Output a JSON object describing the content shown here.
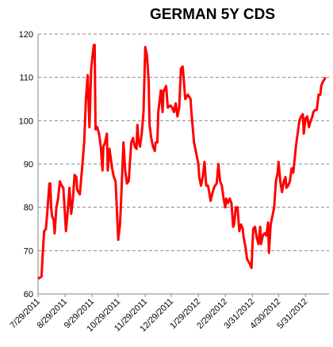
{
  "chart_data": {
    "type": "line",
    "title": "GERMAN 5Y CDS",
    "color": "#ff0000",
    "grid": true,
    "ylim": [
      60,
      120
    ],
    "yticks": [
      60,
      70,
      80,
      90,
      100,
      110,
      120
    ],
    "xlim": [
      "7/29/2011",
      "6/27/2012"
    ],
    "xticks": [
      "7/29/2011",
      "8/29/2011",
      "9/29/2011",
      "10/29/2011",
      "11/29/2011",
      "12/29/2011",
      "1/29/2012",
      "2/29/2012",
      "3/31/2012",
      "4/30/2012",
      "5/31/2012"
    ],
    "x": [
      "7/29/2011",
      "8/2/2011",
      "8/3/2011",
      "8/5/2011",
      "8/7/2011",
      "8/9/2011",
      "8/11/2011",
      "8/12/2011",
      "8/13/2011",
      "8/14/2011",
      "8/16/2011",
      "8/17/2011",
      "8/19/2011",
      "8/21/2011",
      "8/23/2011",
      "8/25/2011",
      "8/27/2011",
      "8/30/2011",
      "9/1/2011",
      "9/3/2011",
      "9/5/2011",
      "9/7/2011",
      "9/9/2011",
      "9/11/2011",
      "9/12/2011",
      "9/15/2011",
      "9/18/2011",
      "9/20/2011",
      "9/22/2011",
      "9/24/2011",
      "9/26/2011",
      "9/28/2011",
      "10/1/2011",
      "10/2/2011",
      "10/3/2011",
      "10/5/2011",
      "10/7/2011",
      "10/9/2011",
      "10/11/2011",
      "10/12/2011",
      "10/14/2011",
      "10/16/2011",
      "10/17/2011",
      "10/19/2011",
      "10/21/2011",
      "10/22/2011",
      "10/24/2011",
      "10/26/2011",
      "10/29/2011",
      "10/31/2011",
      "11/1/2011",
      "11/4/2011",
      "11/6/2011",
      "11/8/2011",
      "11/10/2011",
      "11/11/2011",
      "11/13/2011",
      "11/15/2011",
      "11/17/2011",
      "11/19/2011",
      "11/20/2011",
      "11/21/2011",
      "11/23/2011",
      "11/25/2011",
      "11/27/2011",
      "11/29/2011",
      "12/1/2011",
      "12/3/2011",
      "12/4/2011",
      "12/6/2011",
      "12/8/2011",
      "12/10/2011",
      "12/11/2011",
      "12/13/2011",
      "12/14/2011",
      "12/17/2011",
      "12/19/2011",
      "12/20/2011",
      "12/21/2011",
      "12/23/2011",
      "12/25/2011",
      "12/28/2011",
      "12/30/2011",
      "1/1/2012",
      "1/3/2012",
      "1/5/2012",
      "1/7/2012",
      "1/9/2012",
      "1/11/2012",
      "1/14/2012",
      "1/17/2012",
      "1/20/2012",
      "1/21/2012",
      "1/24/2012",
      "1/27/2012",
      "1/29/2012",
      "1/30/2012",
      "2/1/2012",
      "2/3/2012",
      "2/5/2012",
      "2/7/2012",
      "2/9/2012",
      "2/10/2012",
      "2/12/2012",
      "2/15/2012",
      "2/17/2012",
      "2/19/2012",
      "2/21/2012",
      "2/23/2012",
      "2/25/2012",
      "2/27/2012",
      "2/29/2012",
      "3/1/2012",
      "3/3/2012",
      "3/5/2012",
      "3/7/2012",
      "3/9/2012",
      "3/10/2012",
      "3/12/2012",
      "3/14/2012",
      "3/16/2012",
      "3/18/2012",
      "3/20/2012",
      "3/21/2012",
      "3/23/2012",
      "3/25/2012",
      "3/28/2012",
      "3/30/2012",
      "4/1/2012",
      "4/3/2012",
      "4/5/2012",
      "4/7/2012",
      "4/9/2012",
      "4/10/2012",
      "4/12/2012",
      "4/14/2012",
      "4/16/2012",
      "4/18/2012",
      "4/19/2012",
      "4/21/2012",
      "4/23/2012",
      "4/25/2012",
      "4/27/2012",
      "4/29/2012",
      "4/30/2012",
      "5/2/2012",
      "5/4/2012",
      "5/6/2012",
      "5/8/2012",
      "5/9/2012",
      "5/11/2012",
      "5/13/2012",
      "5/15/2012",
      "5/17/2012",
      "5/19/2012",
      "5/20/2012",
      "5/22/2012",
      "5/24/2012",
      "5/26/2012",
      "5/28/2012",
      "5/29/2012",
      "5/31/2012",
      "6/2/2012",
      "6/4/2012",
      "6/6/2012",
      "6/8/2012",
      "6/9/2012",
      "6/11/2012",
      "6/13/2012",
      "6/15/2012",
      "6/17/2012",
      "6/18/2012",
      "6/20/2012",
      "6/23/2012"
    ],
    "values": [
      63.5,
      64,
      68,
      74.5,
      75,
      80,
      85.5,
      85.5,
      80,
      78,
      77,
      74,
      80,
      82,
      86,
      85,
      84.5,
      74.5,
      79,
      84.5,
      78.5,
      82,
      87.5,
      87,
      84,
      83,
      90,
      95,
      105,
      110.5,
      98.5,
      112,
      117.5,
      117.5,
      98,
      98.5,
      97,
      94,
      88.5,
      94,
      95,
      97,
      88.5,
      93.5,
      90.5,
      89,
      87,
      86,
      72.5,
      76,
      80,
      95,
      88.5,
      85.5,
      86,
      89,
      95,
      96,
      94,
      93.5,
      99,
      96,
      94,
      97,
      102,
      117,
      115,
      109,
      99,
      96,
      94,
      93,
      95,
      95,
      102,
      107,
      102,
      107,
      107,
      108,
      103,
      103.5,
      103,
      102,
      104,
      101,
      103,
      112,
      112.5,
      105,
      106,
      105,
      102,
      95,
      92,
      90,
      87,
      85,
      87,
      90.5,
      85,
      85,
      84,
      81.5,
      84,
      85,
      85.5,
      90,
      86,
      85,
      82,
      80,
      82,
      81,
      82,
      81,
      75.5,
      76,
      80,
      80,
      74.5,
      76,
      75,
      73,
      71,
      68,
      67,
      66,
      75,
      75.5,
      73,
      71.5,
      75.5,
      71.5,
      73.5,
      74,
      73.5,
      76.5,
      69.5,
      76,
      78,
      80,
      86,
      88,
      90.5,
      86,
      83.5,
      86,
      87,
      84.5,
      85,
      86,
      89,
      88,
      92,
      94,
      97,
      100,
      101,
      101.5,
      97,
      100.5,
      101,
      98.5,
      100,
      101,
      102,
      102.5,
      102.5,
      106,
      106,
      108,
      109,
      110
    ]
  }
}
